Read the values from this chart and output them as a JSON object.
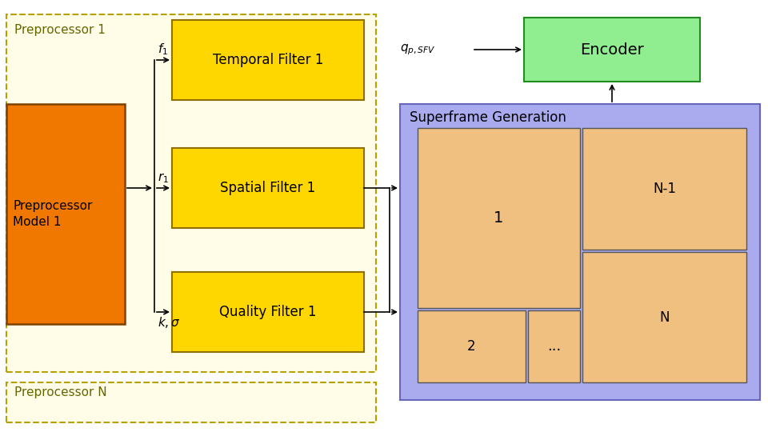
{
  "bg_color": "#ffffff",
  "outer_box_color": "#fffce8",
  "outer_box_edge": "#b8a000",
  "preprocessor1_box_color": "#f07800",
  "preprocessor1_box_edge": "#804000",
  "filter_box_color": "#ffd700",
  "filter_box_edge": "#907000",
  "superframe_box_color": "#aaaaee",
  "superframe_box_edge": "#6666bb",
  "tile_color": "#f0c080",
  "tile_edge": "#555555",
  "encoder_color": "#90ee90",
  "encoder_edge": "#228B22",
  "preprocessor1_label_line1": "Preprocessor",
  "preprocessor1_label_line2": "Model 1",
  "preprocessor1_section_label": "Preprocessor 1",
  "preprocessorN_section_label": "Preprocessor N",
  "temporal_filter_label": "Temporal Filter 1",
  "spatial_filter_label": "Spatial Filter 1",
  "quality_filter_label": "Quality Filter 1",
  "superframe_label": "Superframe Generation",
  "encoder_label": "Encoder",
  "f1_label": "$f_1$",
  "r1_label": "$r_1$",
  "ks_label": "$k,\\sigma$",
  "q_label": "$q_{p,SFV}$",
  "figw": 9.6,
  "figh": 5.4,
  "dpi": 100
}
